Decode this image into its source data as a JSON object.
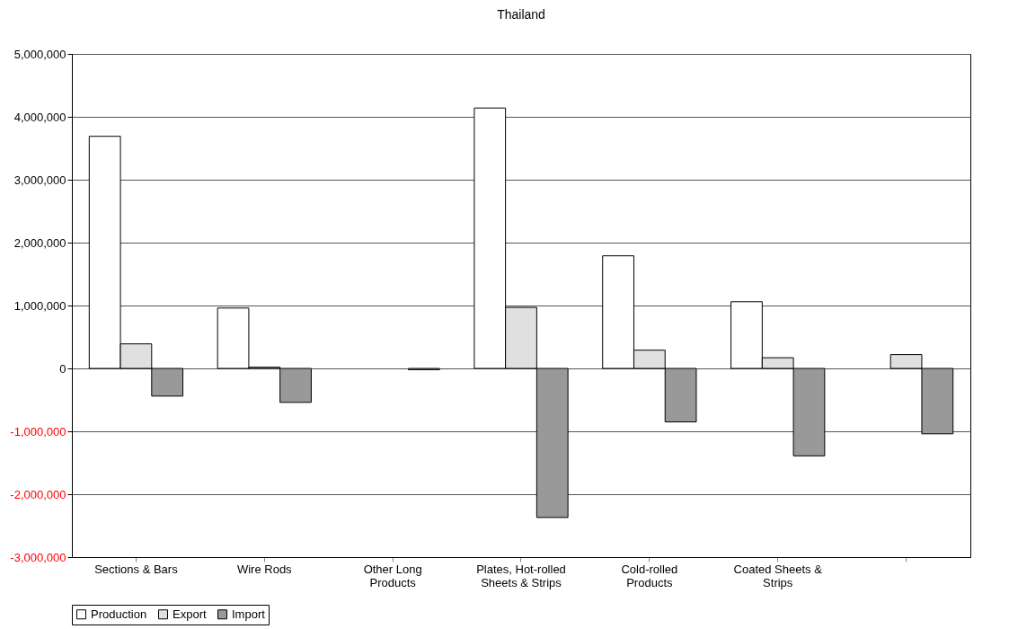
{
  "chart_data": {
    "type": "bar",
    "title": "Thailand",
    "categories": [
      "Sections & Bars",
      "Wire Rods",
      "Other Long Products",
      "Plates, Hot-rolled Sheets & Strips",
      "Cold-rolled Products",
      "Coated Sheets & Strips",
      null
    ],
    "series": [
      {
        "name": "Production",
        "color": "#ffffff",
        "values": [
          3690000,
          960000,
          null,
          4140000,
          1790000,
          1060000,
          null
        ]
      },
      {
        "name": "Export",
        "color": "#e0e0e0",
        "values": [
          390000,
          20000,
          null,
          970000,
          290000,
          170000,
          220000
        ]
      },
      {
        "name": "Import",
        "color": "#999999",
        "values": [
          -440000,
          -540000,
          -20000,
          -2370000,
          -850000,
          -1390000,
          -1040000
        ]
      }
    ],
    "ylim": [
      -3000000,
      5000000
    ],
    "yticks": [
      {
        "value": -3000000,
        "label": "-3,000,000"
      },
      {
        "value": -2000000,
        "label": "-2,000,000"
      },
      {
        "value": -1000000,
        "label": "-1,000,000"
      },
      0,
      {
        "value": 1000000,
        "label": "1,000,000"
      },
      {
        "value": 2000000,
        "label": "2,000,000"
      },
      {
        "value": 3000000,
        "label": "3,000,000"
      },
      {
        "value": 4000000,
        "label": "4,000,000"
      },
      {
        "value": 5000000,
        "label": "5,000,000"
      }
    ],
    "grid": "y",
    "legend": "bottom"
  }
}
